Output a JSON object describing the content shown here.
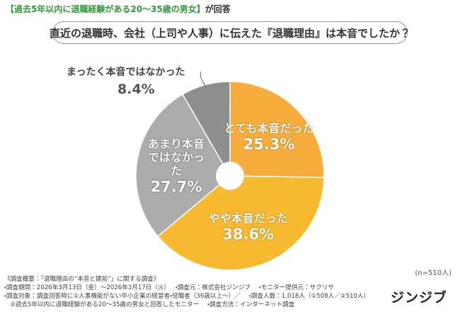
{
  "chart_data": {
    "type": "pie",
    "header_tag": "【過去5年以内に退職経験がある20～35歳の男女】",
    "header_suffix": "が回答",
    "title": "直近の退職時、会社（上司や人事）に伝えた『退職理由』は本音でしたか？",
    "categories": [
      "とても本音だった",
      "やや本音だった",
      "あまり本音ではなかった",
      "まったく本音ではなかった"
    ],
    "values": [
      25.3,
      38.6,
      27.7,
      8.4
    ],
    "value_labels": [
      "25.3%",
      "38.6%",
      "27.7%",
      "8.4%"
    ],
    "colors": [
      "#f6ad3c",
      "#f7b92f",
      "#acacac",
      "#8e8e8e"
    ],
    "sample_note": "(n=510人)",
    "footer": {
      "heading": "《調査概要：「退職理由の“本音と建前”」に関する調査》",
      "lines": [
        "・調査期間：2026年3月13日（金）～2026年3月17日（火）",
        "・調査元：株式会社ジンジブ",
        "・モニター提供元：サクリサ",
        "・調査対象：調査回答時に①人事機能がない中小企業の経営者・役職者（36歳以上～）／",
        "・調査人数：1,018人（①508人／②510人）",
        "②過去5年以内に退職経験がある20～35歳の男女と回答したモニター",
        "・調査方法：インターネット調査"
      ]
    },
    "logo": "ジンジブ"
  }
}
